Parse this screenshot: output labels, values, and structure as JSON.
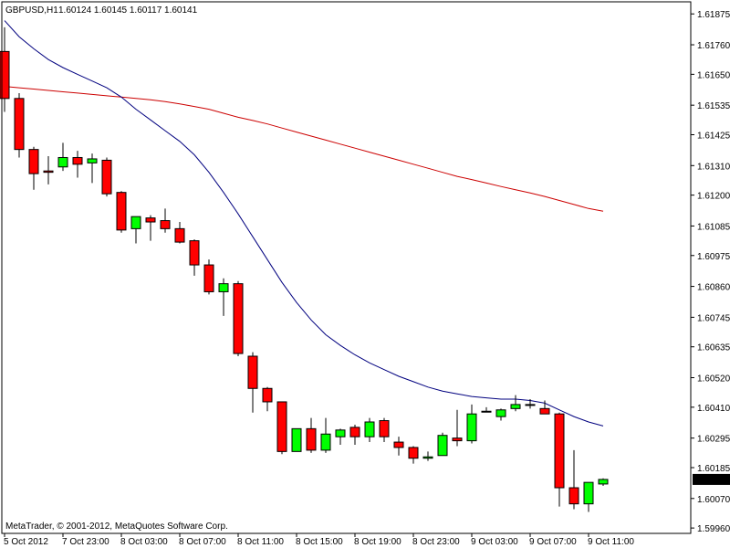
{
  "header": {
    "symbol": "GBPUSD,H1",
    "ohlc": "1.60124 1.60145 1.60117 1.60141"
  },
  "footer": {
    "copyright": "MetaTrader, © 2001-2012, MetaQuotes Software Corp."
  },
  "colors": {
    "background": "#ffffff",
    "bull": "#00ff00",
    "bear": "#ff0000",
    "wick": "#000000",
    "ma_fast": "#00007f",
    "ma_slow": "#cc0000",
    "frame": "#000000",
    "price_tag_bg": "#000000",
    "price_tag_text": "#ffffff"
  },
  "chart_data": {
    "type": "candlestick",
    "symbol": "GBPUSD",
    "timeframe": "H1",
    "current_price": "1.60141",
    "y_ticks": [
      "1.61875",
      "1.61760",
      "1.61650",
      "1.61535",
      "1.61425",
      "1.61310",
      "1.61200",
      "1.61085",
      "1.60975",
      "1.60860",
      "1.60745",
      "1.60635",
      "1.60520",
      "1.60410",
      "1.60295",
      "1.60185",
      "1.60070",
      "1.59960"
    ],
    "x_ticks": [
      "5 Oct 2012",
      "7 Oct 23:00",
      "8 Oct 03:00",
      "8 Oct 07:00",
      "8 Oct 11:00",
      "8 Oct 15:00",
      "8 Oct 19:00",
      "8 Oct 23:00",
      "9 Oct 03:00",
      "9 Oct 07:00",
      "9 Oct 11:00"
    ],
    "ylim": [
      1.5994,
      1.6192
    ],
    "candles": [
      {
        "o": 1.61735,
        "h": 1.61825,
        "l": 1.6151,
        "c": 1.6156
      },
      {
        "o": 1.6156,
        "h": 1.6158,
        "l": 1.6134,
        "c": 1.6137
      },
      {
        "o": 1.6137,
        "h": 1.6138,
        "l": 1.6122,
        "c": 1.6128
      },
      {
        "o": 1.6129,
        "h": 1.61345,
        "l": 1.6124,
        "c": 1.61285
      },
      {
        "o": 1.61305,
        "h": 1.61395,
        "l": 1.6129,
        "c": 1.6134
      },
      {
        "o": 1.6134,
        "h": 1.61365,
        "l": 1.61265,
        "c": 1.61315
      },
      {
        "o": 1.6132,
        "h": 1.61355,
        "l": 1.61245,
        "c": 1.61335
      },
      {
        "o": 1.6133,
        "h": 1.6134,
        "l": 1.61195,
        "c": 1.61205
      },
      {
        "o": 1.6121,
        "h": 1.61215,
        "l": 1.6106,
        "c": 1.6107
      },
      {
        "o": 1.61075,
        "h": 1.6112,
        "l": 1.6102,
        "c": 1.6112
      },
      {
        "o": 1.61115,
        "h": 1.61125,
        "l": 1.6103,
        "c": 1.611
      },
      {
        "o": 1.61105,
        "h": 1.6115,
        "l": 1.6106,
        "c": 1.61075
      },
      {
        "o": 1.61075,
        "h": 1.611,
        "l": 1.6102,
        "c": 1.61025
      },
      {
        "o": 1.6103,
        "h": 1.61035,
        "l": 1.609,
        "c": 1.6094
      },
      {
        "o": 1.6094,
        "h": 1.6096,
        "l": 1.6083,
        "c": 1.6084
      },
      {
        "o": 1.6084,
        "h": 1.6089,
        "l": 1.6075,
        "c": 1.6087
      },
      {
        "o": 1.6087,
        "h": 1.6088,
        "l": 1.606,
        "c": 1.6061
      },
      {
        "o": 1.606,
        "h": 1.60615,
        "l": 1.6039,
        "c": 1.6048
      },
      {
        "o": 1.6048,
        "h": 1.60485,
        "l": 1.60395,
        "c": 1.6043
      },
      {
        "o": 1.6043,
        "h": 1.6043,
        "l": 1.60235,
        "c": 1.60245
      },
      {
        "o": 1.60245,
        "h": 1.6033,
        "l": 1.60245,
        "c": 1.6033
      },
      {
        "o": 1.6033,
        "h": 1.6037,
        "l": 1.6024,
        "c": 1.6025
      },
      {
        "o": 1.6025,
        "h": 1.6037,
        "l": 1.6024,
        "c": 1.6031
      },
      {
        "o": 1.603,
        "h": 1.6033,
        "l": 1.6027,
        "c": 1.60325
      },
      {
        "o": 1.60335,
        "h": 1.60345,
        "l": 1.6027,
        "c": 1.603
      },
      {
        "o": 1.603,
        "h": 1.6037,
        "l": 1.6028,
        "c": 1.60355
      },
      {
        "o": 1.6036,
        "h": 1.6037,
        "l": 1.6028,
        "c": 1.603
      },
      {
        "o": 1.6028,
        "h": 1.603,
        "l": 1.6023,
        "c": 1.6026
      },
      {
        "o": 1.6026,
        "h": 1.60265,
        "l": 1.602,
        "c": 1.6022
      },
      {
        "o": 1.6022,
        "h": 1.60245,
        "l": 1.6021,
        "c": 1.60225
      },
      {
        "o": 1.6023,
        "h": 1.60315,
        "l": 1.6023,
        "c": 1.60305
      },
      {
        "o": 1.60295,
        "h": 1.604,
        "l": 1.60265,
        "c": 1.60285
      },
      {
        "o": 1.60285,
        "h": 1.6042,
        "l": 1.60275,
        "c": 1.60385
      },
      {
        "o": 1.60395,
        "h": 1.6041,
        "l": 1.60395,
        "c": 1.60395
      },
      {
        "o": 1.60375,
        "h": 1.60405,
        "l": 1.6036,
        "c": 1.604
      },
      {
        "o": 1.60405,
        "h": 1.60455,
        "l": 1.60395,
        "c": 1.6042
      },
      {
        "o": 1.6042,
        "h": 1.6044,
        "l": 1.60405,
        "c": 1.6042
      },
      {
        "o": 1.60405,
        "h": 1.60435,
        "l": 1.60395,
        "c": 1.60385
      },
      {
        "o": 1.60385,
        "h": 1.6039,
        "l": 1.6004,
        "c": 1.6011
      },
      {
        "o": 1.6011,
        "h": 1.6025,
        "l": 1.6003,
        "c": 1.6005
      },
      {
        "o": 1.6005,
        "h": 1.60125,
        "l": 1.6002,
        "c": 1.6013
      },
      {
        "o": 1.60124,
        "h": 1.60145,
        "l": 1.60117,
        "c": 1.60141
      }
    ],
    "ma_fast": [
      1.6185,
      1.6179,
      1.61745,
      1.61705,
      1.61675,
      1.6165,
      1.61625,
      1.616,
      1.61565,
      1.6152,
      1.6148,
      1.6144,
      1.614,
      1.6135,
      1.61285,
      1.6121,
      1.6113,
      1.61045,
      1.6096,
      1.60875,
      1.608,
      1.60735,
      1.6068,
      1.6064,
      1.60605,
      1.60575,
      1.6055,
      1.60525,
      1.60505,
      1.60485,
      1.6047,
      1.6046,
      1.6045,
      1.60445,
      1.6044,
      1.6044,
      1.60435,
      1.60425,
      1.604,
      1.60375,
      1.60355,
      1.6034
    ],
    "ma_slow": [
      1.61605,
      1.616,
      1.61595,
      1.6159,
      1.61585,
      1.6158,
      1.61575,
      1.6157,
      1.61565,
      1.6156,
      1.61555,
      1.61548,
      1.6154,
      1.6153,
      1.6152,
      1.61505,
      1.6149,
      1.61478,
      1.61465,
      1.6145,
      1.61435,
      1.6142,
      1.61405,
      1.6139,
      1.61375,
      1.6136,
      1.61345,
      1.6133,
      1.61315,
      1.613,
      1.61285,
      1.6127,
      1.61258,
      1.61245,
      1.61232,
      1.6122,
      1.61208,
      1.61195,
      1.6118,
      1.61165,
      1.6115,
      1.6114
    ]
  }
}
